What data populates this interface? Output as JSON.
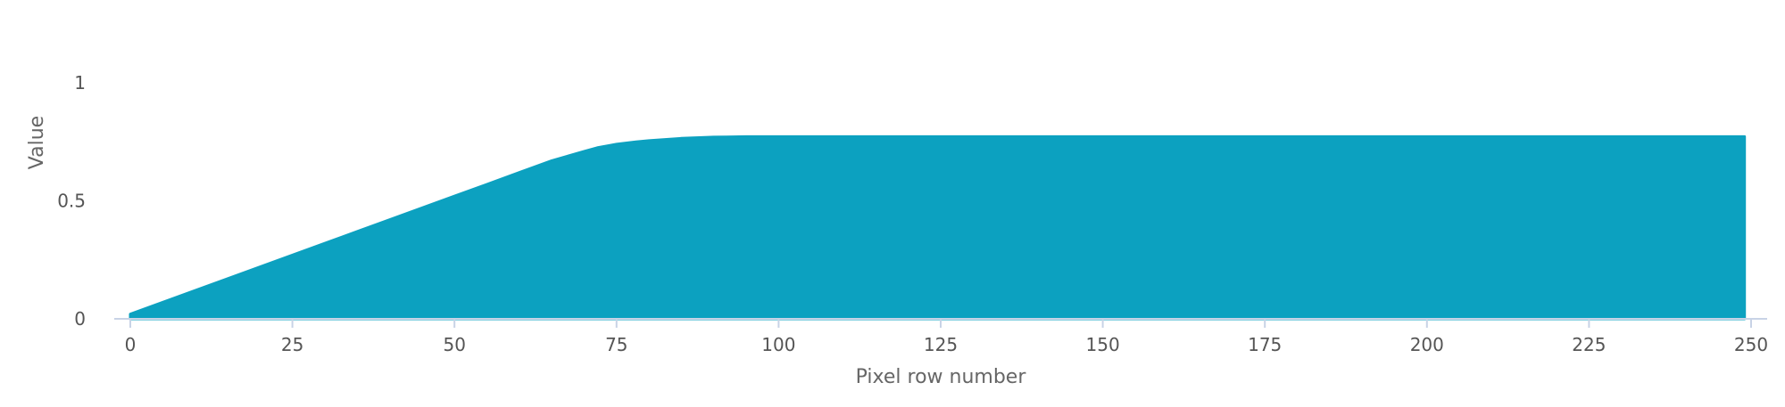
{
  "chart_data": {
    "type": "area",
    "title": "",
    "xlabel": "Pixel row number",
    "ylabel": "Value",
    "xlim": [
      0,
      250
    ],
    "ylim": [
      0,
      1
    ],
    "x_ticks": [
      0,
      25,
      50,
      75,
      100,
      125,
      150,
      175,
      200,
      225,
      250
    ],
    "y_ticks": [
      0,
      0.5,
      1
    ],
    "y_tick_labels": [
      "0",
      "0.5",
      "1"
    ],
    "grid": false,
    "legend": "none",
    "colors": {
      "fill": "#0ca1c0",
      "axis": "#c8d3e6",
      "text": "#555555"
    },
    "series": [
      {
        "x": [
          0,
          5,
          10,
          15,
          20,
          25,
          30,
          35,
          40,
          45,
          50,
          55,
          60,
          65,
          70,
          72,
          74,
          75,
          78,
          80,
          85,
          90,
          92,
          95,
          100,
          125,
          150,
          175,
          200,
          225,
          249
        ],
        "y": [
          0.02,
          0.07,
          0.12,
          0.17,
          0.22,
          0.27,
          0.32,
          0.37,
          0.42,
          0.47,
          0.52,
          0.57,
          0.62,
          0.67,
          0.71,
          0.725,
          0.735,
          0.74,
          0.75,
          0.755,
          0.765,
          0.77,
          0.771,
          0.772,
          0.772,
          0.772,
          0.772,
          0.772,
          0.772,
          0.772,
          0.772
        ]
      }
    ]
  }
}
